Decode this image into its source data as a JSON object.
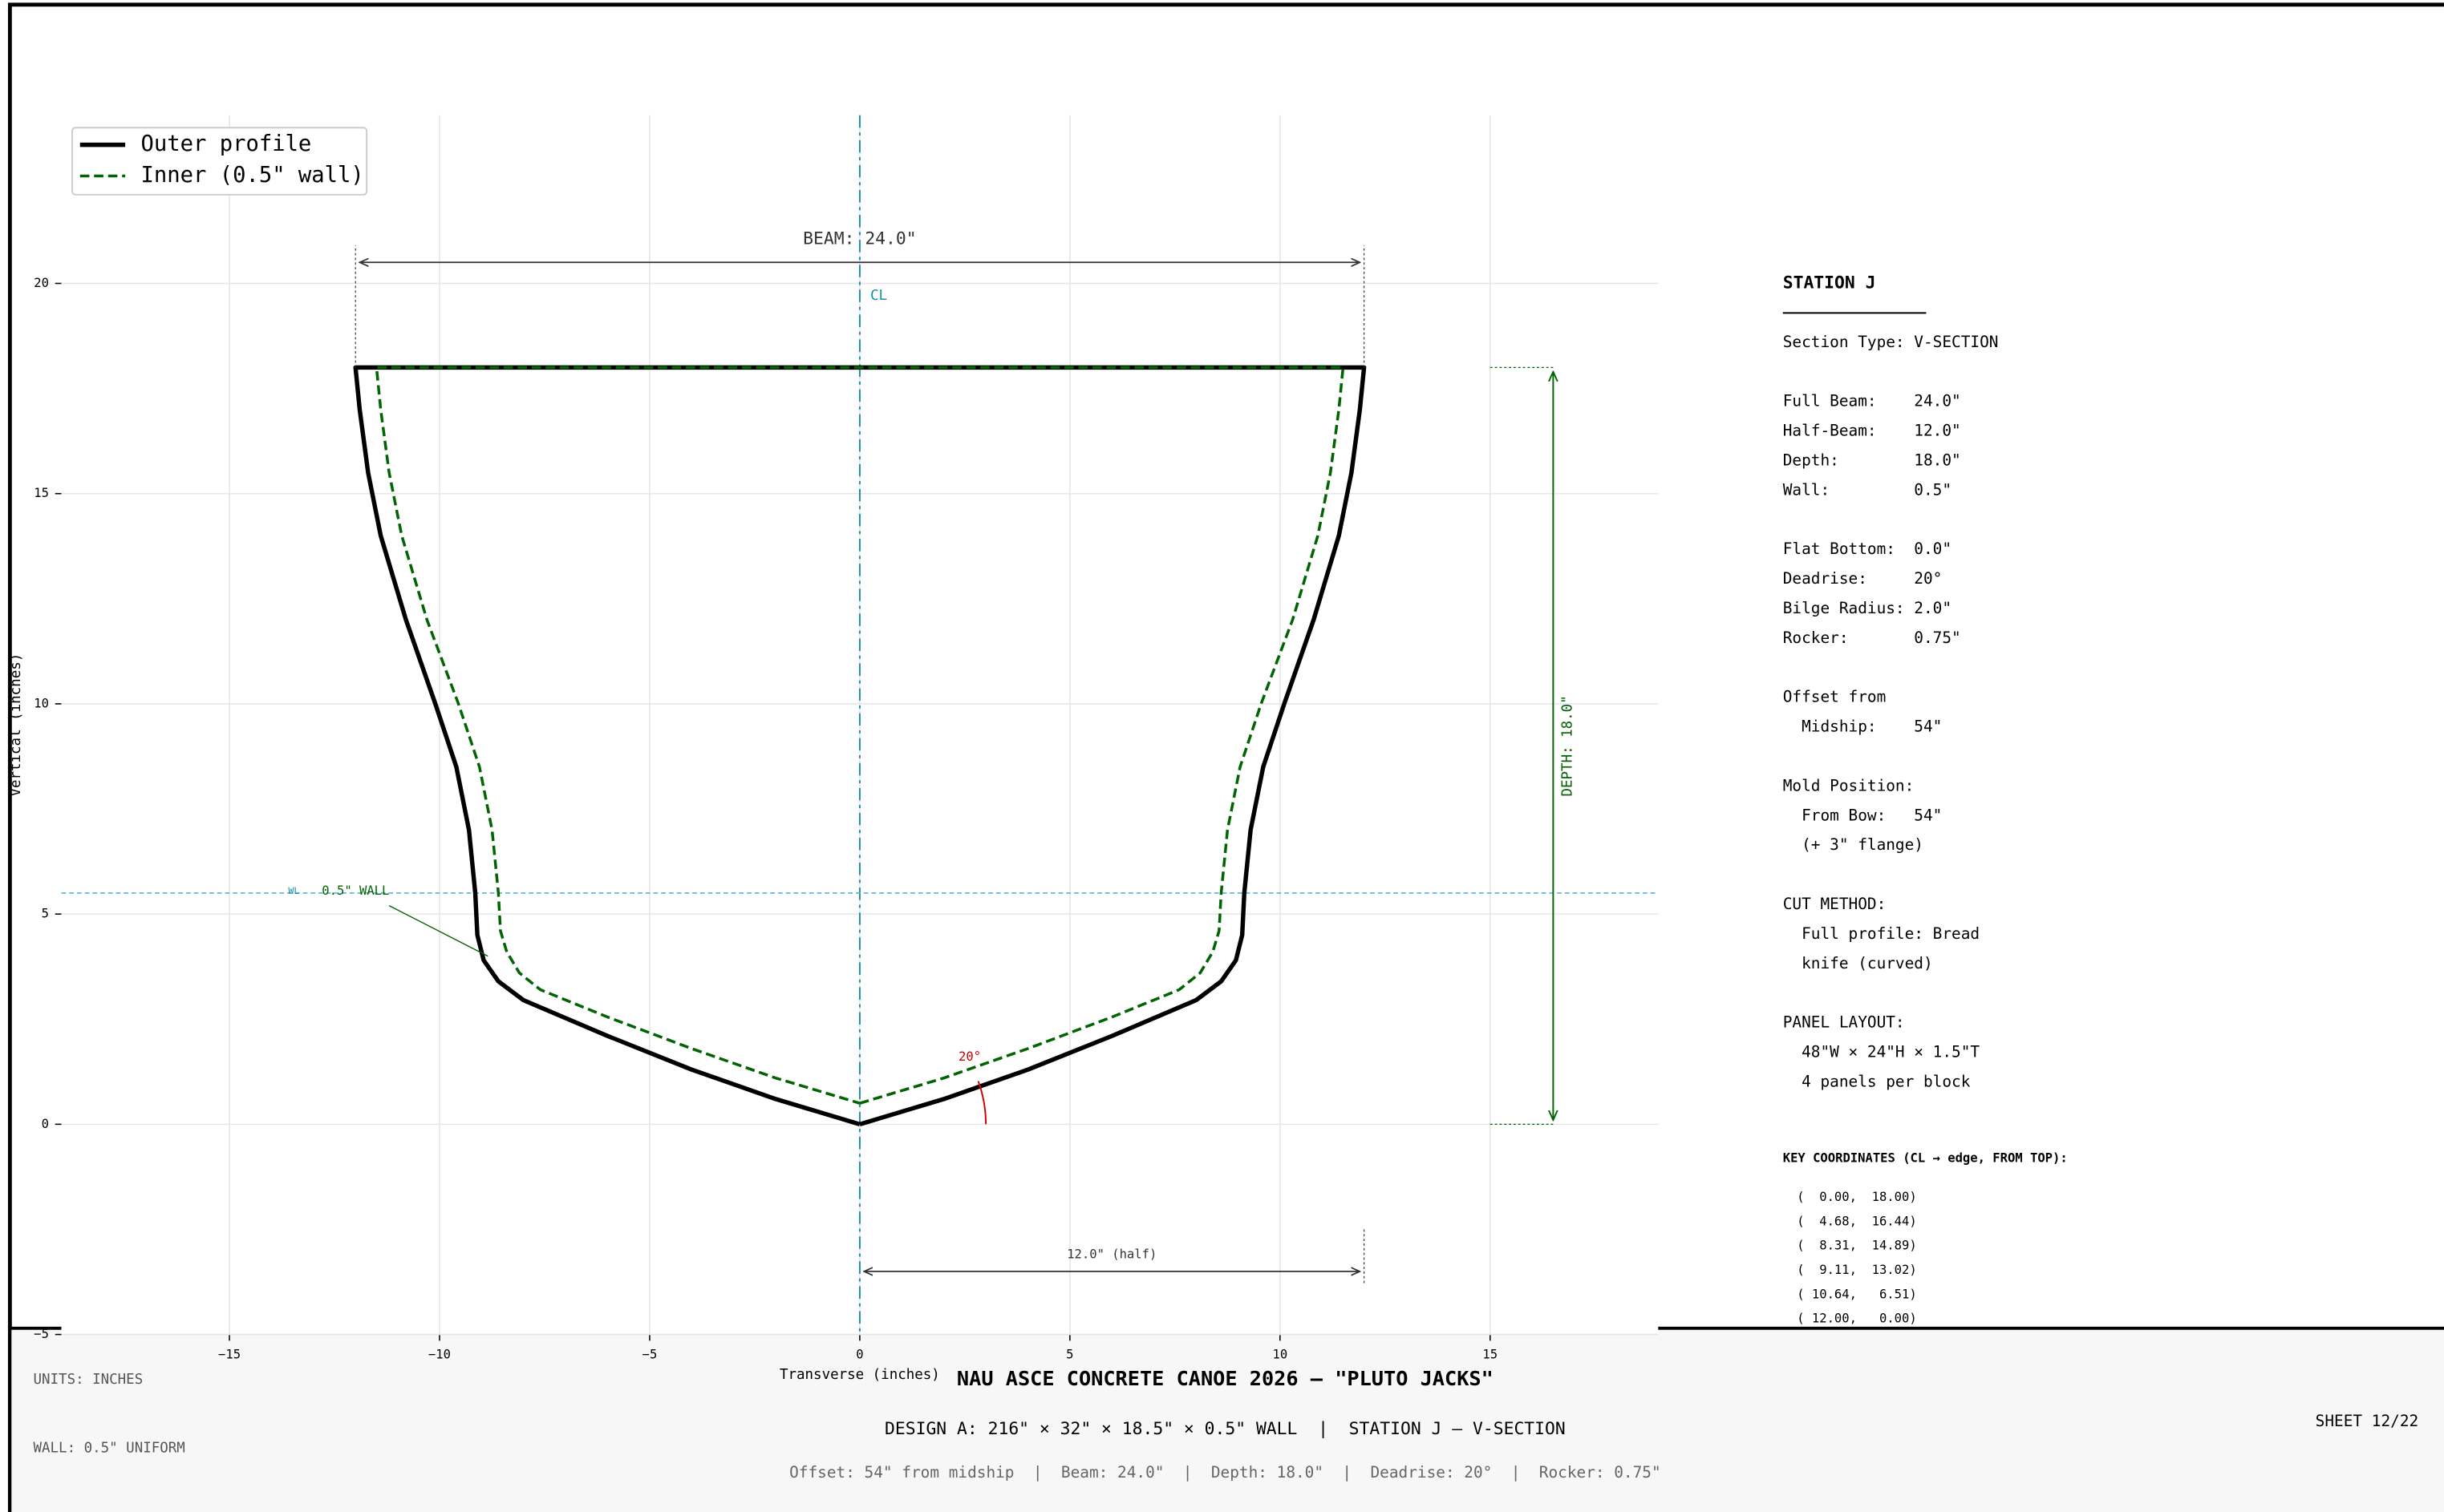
{
  "chart_data": {
    "type": "line",
    "xlabel": "Transverse (inches)",
    "ylabel": "Vertical (inches)",
    "xlim": [
      -19,
      19
    ],
    "ylim": [
      -5,
      24
    ],
    "xticks": [
      {
        "value": -15,
        "label": "−15"
      },
      {
        "value": -10,
        "label": "−10"
      },
      {
        "value": -5,
        "label": "−5"
      },
      0,
      5,
      10,
      15
    ],
    "yticks": [
      {
        "value": -5,
        "label": "−5"
      },
      0,
      5,
      10,
      15,
      20
    ],
    "grid": true,
    "legend": "upper left",
    "series": [
      {
        "name": "Outer profile",
        "color": "#000000",
        "linestyle": "solid",
        "x": [
          0,
          2,
          4,
          6,
          8,
          8.6,
          8.95,
          9.1,
          9.15,
          9.3,
          9.6,
          10.1,
          10.8,
          11.4,
          11.7,
          11.9,
          12,
          -12,
          -11.9,
          -11.7,
          -11.4,
          -10.8,
          -10.1,
          -9.6,
          -9.3,
          -9.15,
          -9.1,
          -8.95,
          -8.6,
          -8,
          -6,
          -4,
          -2,
          0
        ],
        "values": [
          0,
          0.6,
          1.3,
          2.1,
          2.95,
          3.4,
          3.9,
          4.5,
          5.5,
          7,
          8.5,
          10,
          12,
          14,
          15.5,
          17,
          18,
          18,
          17,
          15.5,
          14,
          12,
          10,
          8.5,
          7,
          5.5,
          4.5,
          3.9,
          3.4,
          2.95,
          2.1,
          1.3,
          0.6,
          0
        ]
      },
      {
        "name": "Inner (0.5\" wall)",
        "color": "#006400",
        "linestyle": "dashed",
        "x": [
          0,
          2,
          4,
          6,
          7.6,
          8.1,
          8.4,
          8.55,
          8.6,
          8.75,
          9.05,
          9.55,
          10.3,
          10.9,
          11.2,
          11.4,
          11.5,
          -11.5,
          -11.4,
          -11.2,
          -10.9,
          -10.3,
          -9.55,
          -9.05,
          -8.75,
          -8.6,
          -8.55,
          -8.4,
          -8.1,
          -7.6,
          -6,
          -4,
          -2,
          0
        ],
        "values": [
          0.5,
          1.1,
          1.8,
          2.55,
          3.2,
          3.6,
          4.1,
          4.6,
          5.5,
          7,
          8.5,
          10,
          12,
          14,
          15.5,
          17,
          18,
          18,
          17,
          15.5,
          14,
          12,
          10,
          8.5,
          7,
          5.5,
          4.6,
          4.1,
          3.6,
          3.2,
          2.55,
          1.8,
          1.1,
          0.5
        ]
      }
    ],
    "annotations": {
      "beam": "BEAM: 24.0\"",
      "cl": "CL",
      "wall": "0.5\" WALL",
      "wl": "WL",
      "deadrise": "20°",
      "half": "12.0\" (half)",
      "depth": "DEPTH: 18.0\""
    }
  },
  "panel": {
    "title": "STATION J",
    "groups": [
      [
        "Section Type: V-SECTION"
      ],
      [
        "Full Beam:    24.0\"",
        "Half-Beam:    12.0\"",
        "Depth:        18.0\"",
        "Wall:         0.5\""
      ],
      [
        "Flat Bottom:  0.0\"",
        "Deadrise:     20°",
        "Bilge Radius: 2.0\"",
        "Rocker:       0.75\""
      ],
      [
        "Offset from",
        "  Midship:    54\""
      ],
      [
        "Mold Position:",
        "  From Bow:   54\"",
        "  (+ 3\" flange)"
      ],
      [
        "CUT METHOD:",
        "  Full profile: Bread",
        "  knife (curved)"
      ],
      [
        "PANEL LAYOUT:",
        "  48\"W × 24\"H × 1.5\"T",
        "  4 panels per block"
      ]
    ],
    "coords_title": "KEY COORDINATES (CL → edge, FROM TOP):",
    "coords": [
      "(  0.00,  18.00)",
      "(  4.68,  16.44)",
      "(  8.31,  14.89)",
      "(  9.11,  13.02)",
      "( 10.64,   6.51)",
      "( 12.00,   0.00)"
    ]
  },
  "footer": {
    "units": "UNITS: INCHES",
    "wall": "WALL: 0.5\" UNIFORM",
    "title": "NAU ASCE CONCRETE CANOE 2026 — \"PLUTO JACKS\"",
    "design": "DESIGN A: 216\" × 32\" × 18.5\" × 0.5\" WALL  |  STATION J — V-SECTION",
    "details": "Offset: 54\" from midship  |  Beam: 24.0\"  |  Depth: 18.0\"  |  Deadrise: 20°  |  Rocker: 0.75\"",
    "sheet": "SHEET 12/22"
  }
}
